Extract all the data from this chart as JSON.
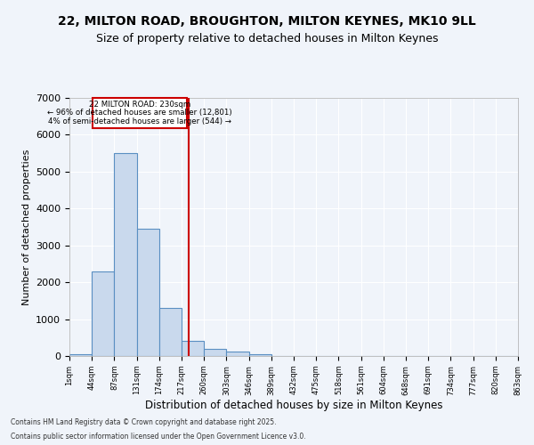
{
  "title_line1": "22, MILTON ROAD, BROUGHTON, MILTON KEYNES, MK10 9LL",
  "title_line2": "Size of property relative to detached houses in Milton Keynes",
  "xlabel": "Distribution of detached houses by size in Milton Keynes",
  "ylabel": "Number of detached properties",
  "bin_labels": [
    "1sqm",
    "44sqm",
    "87sqm",
    "131sqm",
    "174sqm",
    "217sqm",
    "260sqm",
    "303sqm",
    "346sqm",
    "389sqm",
    "432sqm",
    "475sqm",
    "518sqm",
    "561sqm",
    "604sqm",
    "648sqm",
    "691sqm",
    "734sqm",
    "777sqm",
    "820sqm",
    "863sqm"
  ],
  "bar_heights": [
    60,
    2300,
    5500,
    3450,
    1300,
    400,
    200,
    120,
    50,
    0,
    0,
    0,
    0,
    0,
    0,
    0,
    0,
    0,
    0,
    0
  ],
  "bar_color": "#c9d9ed",
  "bar_edge_color": "#5a8fc2",
  "property_size": 230,
  "annotation_text_line1": "22 MILTON ROAD: 230sqm",
  "annotation_text_line2": "← 96% of detached houses are smaller (12,801)",
  "annotation_text_line3": "4% of semi-detached houses are larger (544) →",
  "annotation_box_color": "#cc0000",
  "vline_color": "#cc0000",
  "ylim": [
    0,
    7000
  ],
  "yticks": [
    0,
    1000,
    2000,
    3000,
    4000,
    5000,
    6000,
    7000
  ],
  "background_color": "#f0f4fa",
  "footer_line1": "Contains HM Land Registry data © Crown copyright and database right 2025.",
  "footer_line2": "Contains public sector information licensed under the Open Government Licence v3.0.",
  "grid_color": "#ffffff",
  "title_fontsize": 10,
  "subtitle_fontsize": 9
}
